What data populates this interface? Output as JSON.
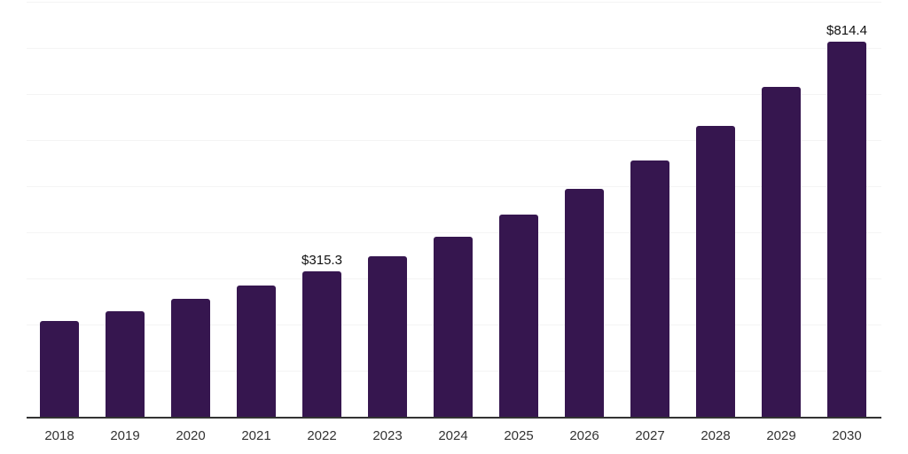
{
  "chart_data": {
    "type": "bar",
    "title": "",
    "xlabel": "",
    "ylabel": "",
    "categories": [
      "2018",
      "2019",
      "2020",
      "2021",
      "2022",
      "2023",
      "2024",
      "2025",
      "2026",
      "2027",
      "2028",
      "2029",
      "2030"
    ],
    "values": [
      208,
      229,
      256,
      284,
      315.3,
      349,
      391,
      439,
      495,
      556,
      631,
      715,
      814.4
    ],
    "data_labels": [
      {
        "category": "2022",
        "text": "$315.3"
      },
      {
        "category": "2030",
        "text": "$814.4"
      }
    ],
    "ylim": [
      0,
      900
    ],
    "gridline_step": 100,
    "grid": true,
    "legend": "none",
    "colors": {
      "bar": "#36164f",
      "axis_line": "#333333",
      "gridline": "#f4f4f4",
      "data_label_text": "#111111",
      "tick_label_text": "#333333",
      "background": "#ffffff"
    }
  }
}
